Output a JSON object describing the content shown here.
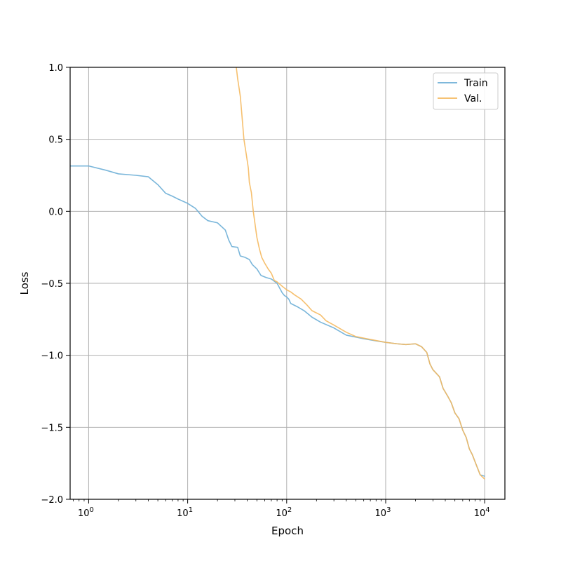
{
  "chart_data": {
    "type": "line",
    "title": "",
    "xlabel": "Epoch",
    "ylabel": "Loss",
    "xscale": "log",
    "xlim": [
      0.65,
      16000
    ],
    "ylim": [
      -2.0,
      1.0
    ],
    "grid": true,
    "legend_position": "top-right",
    "x_ticks": [
      {
        "value": 1,
        "base": "10",
        "exp": "0"
      },
      {
        "value": 10,
        "base": "10",
        "exp": "1"
      },
      {
        "value": 100,
        "base": "10",
        "exp": "2"
      },
      {
        "value": 1000,
        "base": "10",
        "exp": "3"
      },
      {
        "value": 10000,
        "base": "10",
        "exp": "4"
      }
    ],
    "y_ticks": [
      {
        "value": 1.0,
        "label": "1.0"
      },
      {
        "value": 0.5,
        "label": "0.5"
      },
      {
        "value": 0.0,
        "label": "0.0"
      },
      {
        "value": -0.5,
        "label": "−0.5"
      },
      {
        "value": -1.0,
        "label": "−1.0"
      },
      {
        "value": -1.5,
        "label": "−1.5"
      },
      {
        "value": -2.0,
        "label": "−2.0"
      }
    ],
    "series": [
      {
        "name": "Train",
        "color": "#6baed6",
        "points": [
          [
            0.65,
            0.315
          ],
          [
            1,
            0.315
          ],
          [
            1.5,
            0.285
          ],
          [
            2,
            0.26
          ],
          [
            3,
            0.25
          ],
          [
            4,
            0.24
          ],
          [
            5,
            0.185
          ],
          [
            6,
            0.125
          ],
          [
            7,
            0.105
          ],
          [
            8,
            0.085
          ],
          [
            10,
            0.055
          ],
          [
            12,
            0.02
          ],
          [
            14,
            -0.035
          ],
          [
            16,
            -0.065
          ],
          [
            20,
            -0.08
          ],
          [
            24,
            -0.13
          ],
          [
            26,
            -0.2
          ],
          [
            28,
            -0.245
          ],
          [
            32,
            -0.25
          ],
          [
            34,
            -0.31
          ],
          [
            38,
            -0.32
          ],
          [
            42,
            -0.335
          ],
          [
            45,
            -0.37
          ],
          [
            50,
            -0.4
          ],
          [
            55,
            -0.445
          ],
          [
            62,
            -0.46
          ],
          [
            70,
            -0.47
          ],
          [
            80,
            -0.5
          ],
          [
            90,
            -0.565
          ],
          [
            95,
            -0.585
          ],
          [
            100,
            -0.595
          ],
          [
            105,
            -0.61
          ],
          [
            110,
            -0.64
          ],
          [
            130,
            -0.665
          ],
          [
            150,
            -0.69
          ],
          [
            180,
            -0.735
          ],
          [
            220,
            -0.77
          ],
          [
            300,
            -0.81
          ],
          [
            400,
            -0.86
          ],
          [
            600,
            -0.885
          ],
          [
            800,
            -0.9
          ],
          [
            1000,
            -0.91
          ],
          [
            1300,
            -0.92
          ],
          [
            1600,
            -0.925
          ],
          [
            2000,
            -0.92
          ],
          [
            2300,
            -0.94
          ],
          [
            2600,
            -0.98
          ],
          [
            2800,
            -1.06
          ],
          [
            3000,
            -1.1
          ],
          [
            3500,
            -1.15
          ],
          [
            3800,
            -1.23
          ],
          [
            4200,
            -1.28
          ],
          [
            4600,
            -1.33
          ],
          [
            5000,
            -1.4
          ],
          [
            5500,
            -1.44
          ],
          [
            6000,
            -1.52
          ],
          [
            6500,
            -1.57
          ],
          [
            7000,
            -1.65
          ],
          [
            7500,
            -1.69
          ],
          [
            8000,
            -1.74
          ],
          [
            9000,
            -1.83
          ],
          [
            10000,
            -1.84
          ]
        ]
      },
      {
        "name": "Val.",
        "color": "#f5b95f",
        "points": [
          [
            31,
            1.0
          ],
          [
            32,
            0.92
          ],
          [
            34,
            0.8
          ],
          [
            35,
            0.7
          ],
          [
            37,
            0.5
          ],
          [
            39,
            0.4
          ],
          [
            41,
            0.3
          ],
          [
            42,
            0.2
          ],
          [
            44,
            0.13
          ],
          [
            46,
            0.0
          ],
          [
            50,
            -0.18
          ],
          [
            53,
            -0.26
          ],
          [
            56,
            -0.32
          ],
          [
            60,
            -0.36
          ],
          [
            65,
            -0.4
          ],
          [
            70,
            -0.43
          ],
          [
            75,
            -0.48
          ],
          [
            80,
            -0.49
          ],
          [
            90,
            -0.52
          ],
          [
            100,
            -0.545
          ],
          [
            110,
            -0.56
          ],
          [
            120,
            -0.58
          ],
          [
            140,
            -0.61
          ],
          [
            160,
            -0.65
          ],
          [
            180,
            -0.69
          ],
          [
            220,
            -0.72
          ],
          [
            250,
            -0.76
          ],
          [
            300,
            -0.79
          ],
          [
            400,
            -0.84
          ],
          [
            500,
            -0.87
          ],
          [
            700,
            -0.89
          ],
          [
            1000,
            -0.91
          ],
          [
            1300,
            -0.92
          ],
          [
            1600,
            -0.925
          ],
          [
            2000,
            -0.92
          ],
          [
            2300,
            -0.94
          ],
          [
            2600,
            -0.98
          ],
          [
            2800,
            -1.06
          ],
          [
            3000,
            -1.1
          ],
          [
            3500,
            -1.15
          ],
          [
            3800,
            -1.23
          ],
          [
            4200,
            -1.28
          ],
          [
            4600,
            -1.33
          ],
          [
            5000,
            -1.4
          ],
          [
            5500,
            -1.44
          ],
          [
            6000,
            -1.52
          ],
          [
            6500,
            -1.57
          ],
          [
            7000,
            -1.65
          ],
          [
            7500,
            -1.69
          ],
          [
            8000,
            -1.74
          ],
          [
            9000,
            -1.83
          ],
          [
            10000,
            -1.86
          ]
        ]
      }
    ]
  }
}
